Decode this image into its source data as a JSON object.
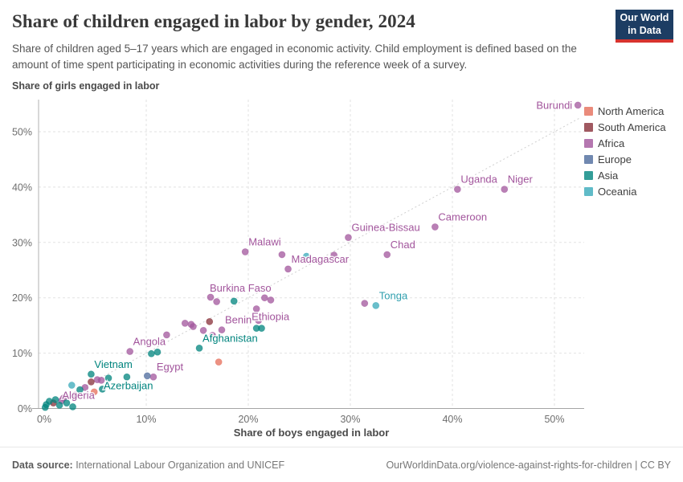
{
  "header": {
    "title": "Share of children engaged in labor by gender, 2024",
    "subtitle": "Share of children aged 5–17 years which are engaged in economic activity. Child employment is defined based on the amount of time spent participating in economic activities during the reference week of a survey.",
    "logo": {
      "line1": "Our World",
      "line2": "in Data"
    }
  },
  "footer": {
    "source_label": "Data source:",
    "source_text": " International Labour Organization and UNICEF",
    "link_text": "OurWorldinData.org/violence-against-rights-for-children | CC BY"
  },
  "chart_data": {
    "type": "scatter",
    "title": "Share of children engaged in labor by gender, 2024",
    "xlabel": "Share of boys engaged in labor",
    "ylabel": "Share of girls engaged in labor",
    "xlim": [
      0,
      52.5
    ],
    "ylim": [
      0,
      55
    ],
    "x_ticks": [
      0,
      10,
      20,
      30,
      40,
      50
    ],
    "y_ticks": [
      0,
      10,
      20,
      30,
      40,
      50
    ],
    "tick_suffix": "%",
    "grid": "dashed",
    "diagonal_parity_line": true,
    "legend_position": "right",
    "regions": [
      {
        "id": "north_america",
        "label": "North America",
        "color": "#e56e5a"
      },
      {
        "id": "south_america",
        "label": "South America",
        "color": "#883039"
      },
      {
        "id": "africa",
        "label": "Africa",
        "color": "#a2559c"
      },
      {
        "id": "europe",
        "label": "Europe",
        "color": "#4c6a9c"
      },
      {
        "id": "asia",
        "label": "Asia",
        "color": "#00847e"
      },
      {
        "id": "oceania",
        "label": "Oceania",
        "color": "#38aaba"
      }
    ],
    "label_colors": {
      "north_america": "#e56e5a",
      "south_america": "#883039",
      "africa": "#a2559c",
      "europe": "#4c6a9c",
      "asia": "#00847e",
      "oceania": "#2f9fae"
    },
    "points": [
      {
        "name": "Burundi",
        "x": 52.3,
        "y": 54.8,
        "region": "africa",
        "label_pos": "left"
      },
      {
        "name": "Niger",
        "x": 45.1,
        "y": 39.6,
        "region": "africa",
        "label_pos": "above-right"
      },
      {
        "name": "Uganda",
        "x": 40.5,
        "y": 39.6,
        "region": "africa",
        "label_pos": "above-right"
      },
      {
        "name": "Cameroon",
        "x": 38.3,
        "y": 32.8,
        "region": "africa",
        "label_pos": "above-right"
      },
      {
        "name": "Chad",
        "x": 33.6,
        "y": 27.8,
        "region": "africa",
        "label_pos": "above-right"
      },
      {
        "name": "Guinea-Bissau",
        "x": 29.8,
        "y": 30.9,
        "region": "africa",
        "label_pos": "above-right"
      },
      {
        "name": "Madagascar",
        "x": 23.9,
        "y": 25.2,
        "region": "africa",
        "label_pos": "above-right"
      },
      {
        "name": "Malawi",
        "x": 19.7,
        "y": 28.3,
        "region": "africa",
        "label_pos": "above-right"
      },
      {
        "name": "Burkina Faso",
        "x": 16.3,
        "y": 20.1,
        "region": "africa",
        "label_pos": "above"
      },
      {
        "name": "Tonga",
        "x": 32.5,
        "y": 18.6,
        "region": "oceania",
        "label_pos": "above-right"
      },
      {
        "name": "Ethiopia",
        "x": 20.8,
        "y": 18.0,
        "region": "africa",
        "label_pos": "below-right"
      },
      {
        "name": "Benin",
        "x": 17.4,
        "y": 14.2,
        "region": "africa",
        "label_pos": "above-right"
      },
      {
        "name": "Afghanistan",
        "x": 15.2,
        "y": 10.9,
        "region": "asia",
        "label_pos": "above-right"
      },
      {
        "name": "Angola",
        "x": 8.4,
        "y": 10.3,
        "region": "africa",
        "label_pos": "above-right"
      },
      {
        "name": "Egypt",
        "x": 10.7,
        "y": 5.7,
        "region": "africa",
        "label_pos": "above-right"
      },
      {
        "name": "Vietnam",
        "x": 4.6,
        "y": 6.2,
        "region": "asia",
        "label_pos": "above-right"
      },
      {
        "name": "Azerbaijan",
        "x": 6.3,
        "y": 5.5,
        "region": "asia",
        "label_pos": "below-right"
      },
      {
        "name": "Algeria",
        "x": 4.0,
        "y": 3.8,
        "region": "africa",
        "label_pos": "below-left"
      },
      {
        "x": 23.3,
        "y": 27.8,
        "region": "africa"
      },
      {
        "x": 25.7,
        "y": 27.5,
        "region": "oceania"
      },
      {
        "x": 28.4,
        "y": 27.7,
        "region": "africa"
      },
      {
        "x": 31.4,
        "y": 19.0,
        "region": "africa"
      },
      {
        "x": 21.6,
        "y": 20.0,
        "region": "africa"
      },
      {
        "x": 22.2,
        "y": 19.6,
        "region": "africa"
      },
      {
        "x": 18.6,
        "y": 19.4,
        "region": "asia"
      },
      {
        "x": 16.9,
        "y": 19.3,
        "region": "africa"
      },
      {
        "x": 21.0,
        "y": 15.9,
        "region": "africa"
      },
      {
        "x": 20.8,
        "y": 14.5,
        "region": "asia"
      },
      {
        "x": 21.3,
        "y": 14.5,
        "region": "asia"
      },
      {
        "x": 16.2,
        "y": 15.7,
        "region": "south_america"
      },
      {
        "x": 13.8,
        "y": 15.4,
        "region": "africa"
      },
      {
        "x": 14.4,
        "y": 15.2,
        "region": "africa"
      },
      {
        "x": 14.6,
        "y": 14.8,
        "region": "africa"
      },
      {
        "x": 15.6,
        "y": 14.1,
        "region": "africa"
      },
      {
        "x": 16.5,
        "y": 13.2,
        "region": "africa"
      },
      {
        "x": 12.0,
        "y": 13.3,
        "region": "africa"
      },
      {
        "x": 17.1,
        "y": 8.4,
        "region": "north_america"
      },
      {
        "x": 10.5,
        "y": 9.9,
        "region": "asia"
      },
      {
        "x": 11.1,
        "y": 10.2,
        "region": "asia"
      },
      {
        "x": 10.1,
        "y": 5.9,
        "region": "europe"
      },
      {
        "x": 8.1,
        "y": 5.7,
        "region": "asia"
      },
      {
        "x": 5.2,
        "y": 5.2,
        "region": "africa"
      },
      {
        "x": 5.6,
        "y": 5.1,
        "region": "africa"
      },
      {
        "x": 4.6,
        "y": 4.8,
        "region": "south_america"
      },
      {
        "x": 2.7,
        "y": 4.2,
        "region": "oceania"
      },
      {
        "x": 3.5,
        "y": 3.4,
        "region": "asia"
      },
      {
        "x": 5.7,
        "y": 3.5,
        "region": "asia"
      },
      {
        "x": 4.9,
        "y": 3.0,
        "region": "north_america"
      },
      {
        "x": 1.7,
        "y": 1.4,
        "region": "africa"
      },
      {
        "x": 0.9,
        "y": 1.0,
        "region": "south_america"
      },
      {
        "x": 0.2,
        "y": 0.7,
        "region": "asia"
      },
      {
        "x": 0.5,
        "y": 1.3,
        "region": "asia"
      },
      {
        "x": 1.1,
        "y": 1.6,
        "region": "asia"
      },
      {
        "x": 1.5,
        "y": 0.6,
        "region": "asia"
      },
      {
        "x": 2.8,
        "y": 0.3,
        "region": "asia"
      },
      {
        "x": 1.9,
        "y": 1.9,
        "region": "africa"
      },
      {
        "x": 0.1,
        "y": 0.2,
        "region": "asia"
      },
      {
        "x": 3.0,
        "y": 2.4,
        "region": "africa"
      },
      {
        "x": 2.2,
        "y": 1.0,
        "region": "asia"
      }
    ]
  }
}
